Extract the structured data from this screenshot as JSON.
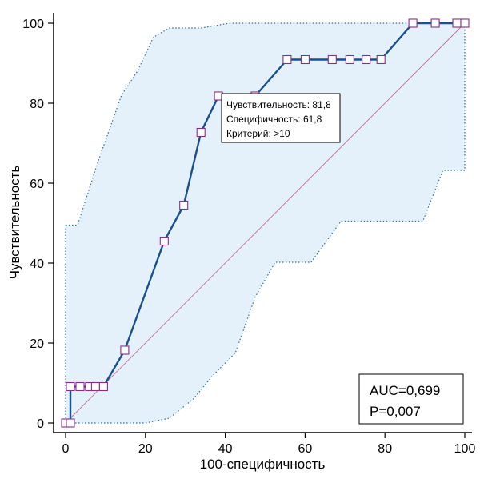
{
  "chart_data": {
    "type": "line",
    "title": "",
    "xlabel": "100-специфичность",
    "ylabel": "Чувствительность",
    "xlim": [
      0,
      100
    ],
    "ylim": [
      0,
      100
    ],
    "xticks": [
      "0",
      "20",
      "40",
      "60",
      "80",
      "100"
    ],
    "yticks": [
      "0",
      "20",
      "40",
      "60",
      "80",
      "100"
    ],
    "grid": false,
    "series": [
      {
        "points": [
          [
            0,
            0
          ],
          [
            1.2,
            0
          ],
          [
            1.2,
            9.1
          ],
          [
            3.6,
            9.1
          ],
          [
            6,
            9.1
          ],
          [
            7.5,
            9.1
          ],
          [
            9.5,
            9.1
          ],
          [
            14.8,
            18.2
          ],
          [
            24.7,
            45.5
          ],
          [
            29.6,
            54.5
          ],
          [
            33.9,
            72.7
          ],
          [
            38.3,
            81.8
          ],
          [
            47.5,
            81.8
          ],
          [
            55.5,
            90.9
          ],
          [
            60,
            90.9
          ],
          [
            66.8,
            90.9
          ],
          [
            71.2,
            90.9
          ],
          [
            75.3,
            90.9
          ],
          [
            79,
            90.9
          ],
          [
            87,
            100
          ],
          [
            92.6,
            100
          ],
          [
            98,
            100
          ],
          [
            100,
            100
          ]
        ]
      }
    ],
    "confidence_band": {
      "upper": [
        [
          0,
          49.5
        ],
        [
          3,
          49.5
        ],
        [
          8,
          65
        ],
        [
          14,
          82
        ],
        [
          18,
          88
        ],
        [
          22,
          96.5
        ],
        [
          26,
          98.8
        ],
        [
          34,
          98.8
        ],
        [
          41,
          100
        ],
        [
          100,
          100
        ]
      ],
      "lower": [
        [
          0,
          0
        ],
        [
          20,
          0
        ],
        [
          26,
          1.2
        ],
        [
          32,
          6
        ],
        [
          37,
          12
        ],
        [
          42.5,
          17.5
        ],
        [
          47.5,
          31.5
        ],
        [
          52.5,
          40.2
        ],
        [
          61.5,
          40.2
        ],
        [
          69,
          50.5
        ],
        [
          89.5,
          50.5
        ],
        [
          94.5,
          63.2
        ],
        [
          97.5,
          63.2
        ],
        [
          100,
          63.2
        ]
      ]
    },
    "reference_line": [
      [
        0,
        0
      ],
      [
        100,
        100
      ]
    ],
    "colors": {
      "curve": "#1a4f8f",
      "band_fill": "#e4f1fb",
      "band_edge": "#2e6da4",
      "reference": "#c07090",
      "marker_edge": "#8a2d8a"
    },
    "tooltip": {
      "lines": [
        "Чувствительность: 81,8",
        "Специфичность: 61,8",
        "Критерий: >10"
      ]
    },
    "stats": {
      "lines": [
        "AUC=0,699",
        "P=0,007"
      ]
    }
  }
}
